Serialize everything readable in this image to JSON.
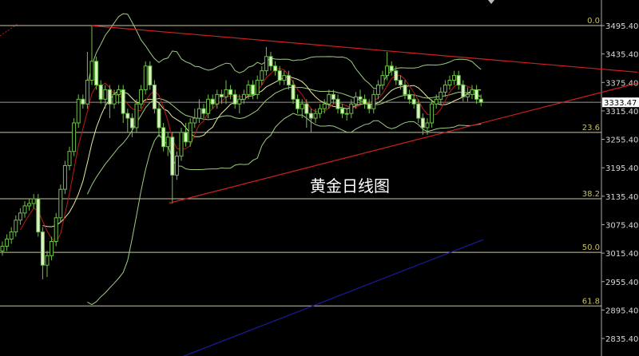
{
  "chart_data": {
    "type": "candlestick",
    "title": "黄金日线图",
    "ylim": [
      2805,
      3530
    ],
    "y_ticks": [
      "3495.40",
      "3435.40",
      "3375.40",
      "3315.40",
      "3255.40",
      "3195.40",
      "3135.40",
      "3075.40",
      "3015.40",
      "2955.40",
      "2895.40",
      "2835.40"
    ],
    "current_price": "3333.47",
    "fib_levels": [
      {
        "label": "0.0",
        "price": 3495.4
      },
      {
        "label": "23.6",
        "price": 3270
      },
      {
        "label": "38.2",
        "price": 3130
      },
      {
        "label": "50.0",
        "price": 3017
      },
      {
        "label": "61.8",
        "price": 2904
      }
    ],
    "candles": [
      [
        3020,
        3040,
        3010,
        3030
      ],
      [
        3030,
        3055,
        3020,
        3045
      ],
      [
        3045,
        3070,
        3035,
        3060
      ],
      [
        3060,
        3095,
        3050,
        3085
      ],
      [
        3085,
        3110,
        3075,
        3100
      ],
      [
        3100,
        3125,
        3090,
        3115
      ],
      [
        3115,
        3130,
        3105,
        3120
      ],
      [
        3120,
        3140,
        3110,
        3130
      ],
      [
        3130,
        3140,
        3050,
        3060
      ],
      [
        3060,
        3070,
        2960,
        2990
      ],
      [
        2990,
        3020,
        2965,
        3010
      ],
      [
        3010,
        3050,
        3000,
        3040
      ],
      [
        3040,
        3100,
        3030,
        3090
      ],
      [
        3090,
        3160,
        3080,
        3150
      ],
      [
        3150,
        3210,
        3140,
        3200
      ],
      [
        3200,
        3240,
        3190,
        3230
      ],
      [
        3230,
        3300,
        3220,
        3290
      ],
      [
        3290,
        3350,
        3280,
        3340
      ],
      [
        3340,
        3350,
        3320,
        3330
      ],
      [
        3330,
        3440,
        3320,
        3380
      ],
      [
        3380,
        3495,
        3370,
        3420
      ],
      [
        3420,
        3430,
        3360,
        3370
      ],
      [
        3370,
        3380,
        3330,
        3340
      ],
      [
        3340,
        3370,
        3320,
        3360
      ],
      [
        3360,
        3370,
        3300,
        3330
      ],
      [
        3330,
        3360,
        3320,
        3350
      ],
      [
        3350,
        3370,
        3330,
        3360
      ],
      [
        3360,
        3370,
        3290,
        3310
      ],
      [
        3310,
        3320,
        3270,
        3300
      ],
      [
        3300,
        3310,
        3260,
        3280
      ],
      [
        3280,
        3340,
        3270,
        3330
      ],
      [
        3330,
        3370,
        3320,
        3360
      ],
      [
        3360,
        3420,
        3350,
        3410
      ],
      [
        3410,
        3420,
        3360,
        3370
      ],
      [
        3370,
        3380,
        3310,
        3320
      ],
      [
        3320,
        3330,
        3260,
        3280
      ],
      [
        3280,
        3290,
        3230,
        3240
      ],
      [
        3240,
        3270,
        3220,
        3260
      ],
      [
        3260,
        3270,
        3120,
        3180
      ],
      [
        3180,
        3230,
        3170,
        3220
      ],
      [
        3220,
        3280,
        3210,
        3270
      ],
      [
        3270,
        3290,
        3240,
        3250
      ],
      [
        3250,
        3300,
        3240,
        3290
      ],
      [
        3290,
        3320,
        3280,
        3300
      ],
      [
        3300,
        3340,
        3290,
        3320
      ],
      [
        3320,
        3330,
        3300,
        3310
      ],
      [
        3310,
        3350,
        3300,
        3340
      ],
      [
        3340,
        3350,
        3320,
        3330
      ],
      [
        3330,
        3360,
        3320,
        3350
      ],
      [
        3350,
        3360,
        3330,
        3345
      ],
      [
        3345,
        3380,
        3330,
        3360
      ],
      [
        3360,
        3370,
        3340,
        3350
      ],
      [
        3350,
        3360,
        3320,
        3330
      ],
      [
        3330,
        3350,
        3310,
        3340
      ],
      [
        3340,
        3360,
        3330,
        3350
      ],
      [
        3350,
        3380,
        3340,
        3370
      ],
      [
        3370,
        3380,
        3340,
        3350
      ],
      [
        3350,
        3390,
        3340,
        3380
      ],
      [
        3380,
        3410,
        3370,
        3400
      ],
      [
        3400,
        3450,
        3390,
        3430
      ],
      [
        3430,
        3440,
        3400,
        3410
      ],
      [
        3410,
        3420,
        3390,
        3400
      ],
      [
        3400,
        3410,
        3370,
        3380
      ],
      [
        3380,
        3400,
        3370,
        3390
      ],
      [
        3390,
        3400,
        3360,
        3370
      ],
      [
        3370,
        3380,
        3330,
        3340
      ],
      [
        3340,
        3350,
        3310,
        3320
      ],
      [
        3320,
        3340,
        3300,
        3330
      ],
      [
        3330,
        3340,
        3280,
        3310
      ],
      [
        3310,
        3320,
        3270,
        3300
      ],
      [
        3300,
        3320,
        3290,
        3310
      ],
      [
        3310,
        3330,
        3300,
        3320
      ],
      [
        3320,
        3340,
        3310,
        3330
      ],
      [
        3330,
        3360,
        3320,
        3350
      ],
      [
        3350,
        3360,
        3330,
        3340
      ],
      [
        3340,
        3350,
        3310,
        3320
      ],
      [
        3320,
        3330,
        3300,
        3310
      ],
      [
        3310,
        3320,
        3295,
        3310
      ],
      [
        3310,
        3340,
        3300,
        3330
      ],
      [
        3330,
        3355,
        3320,
        3345
      ],
      [
        3345,
        3360,
        3330,
        3340
      ],
      [
        3340,
        3350,
        3320,
        3330
      ],
      [
        3330,
        3340,
        3310,
        3320
      ],
      [
        3320,
        3360,
        3310,
        3350
      ],
      [
        3350,
        3380,
        3340,
        3370
      ],
      [
        3370,
        3400,
        3360,
        3390
      ],
      [
        3390,
        3440,
        3380,
        3410
      ],
      [
        3410,
        3420,
        3390,
        3400
      ],
      [
        3400,
        3410,
        3370,
        3380
      ],
      [
        3380,
        3390,
        3360,
        3370
      ],
      [
        3370,
        3380,
        3340,
        3350
      ],
      [
        3350,
        3360,
        3330,
        3340
      ],
      [
        3340,
        3350,
        3320,
        3330
      ],
      [
        3330,
        3340,
        3290,
        3300
      ],
      [
        3300,
        3310,
        3265,
        3280
      ],
      [
        3280,
        3300,
        3265,
        3290
      ],
      [
        3290,
        3340,
        3280,
        3330
      ],
      [
        3330,
        3350,
        3320,
        3340
      ],
      [
        3340,
        3365,
        3330,
        3355
      ],
      [
        3355,
        3380,
        3345,
        3370
      ],
      [
        3370,
        3390,
        3360,
        3380
      ],
      [
        3380,
        3400,
        3370,
        3390
      ],
      [
        3390,
        3400,
        3360,
        3370
      ],
      [
        3370,
        3380,
        3335,
        3345
      ],
      [
        3345,
        3365,
        3335,
        3350
      ],
      [
        3350,
        3370,
        3340,
        3360
      ],
      [
        3360,
        3370,
        3330,
        3340
      ],
      [
        3340,
        3350,
        3325,
        3333.47
      ]
    ],
    "trendlines": [
      {
        "color": "#d02020",
        "from": [
          20,
          3495
        ],
        "to": [
          142,
          3397
        ]
      },
      {
        "color": "#d02020",
        "from": [
          37.3,
          3121
        ],
        "to": [
          142,
          3374
        ]
      },
      {
        "color": "#1a1aa0",
        "from": [
          40.5,
          2798
        ],
        "to": [
          107.5,
          3044
        ]
      }
    ],
    "indicator_colors": {
      "ma_fast": "#c01818",
      "ma_slow": "#e8e8a0",
      "bollinger": "#9ccc80"
    },
    "candle_colors": {
      "up": "#6fc04a",
      "down": "#d8f5c0"
    }
  }
}
